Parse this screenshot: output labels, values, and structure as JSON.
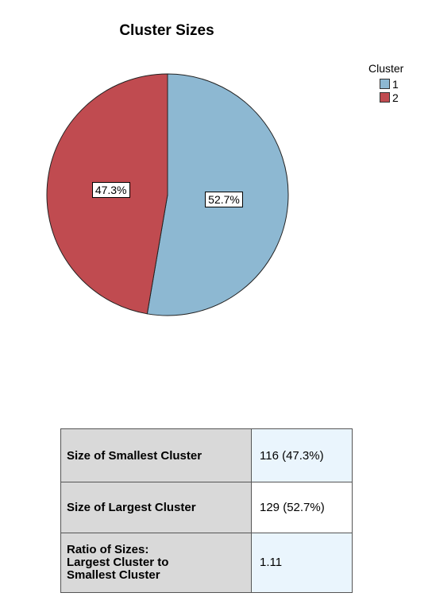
{
  "chart_data": {
    "type": "pie",
    "title": "Cluster Sizes",
    "legend": {
      "title": "Cluster",
      "placement": "top-right",
      "entries": [
        "1",
        "2"
      ]
    },
    "slices": [
      {
        "label": "1",
        "value": 52.7,
        "display": "52.7%",
        "color": "#8db8d2"
      },
      {
        "label": "2",
        "value": 47.3,
        "display": "47.3%",
        "color": "#c04b50"
      }
    ]
  },
  "summary_table": {
    "rows": [
      {
        "label": "Size of Smallest Cluster",
        "value": "116 (47.3%)"
      },
      {
        "label": "Size of Largest Cluster",
        "value": "129 (52.7%)"
      },
      {
        "label": "Ratio of Sizes:\nLargest Cluster to\nSmallest Cluster",
        "value": "1.11"
      }
    ]
  }
}
